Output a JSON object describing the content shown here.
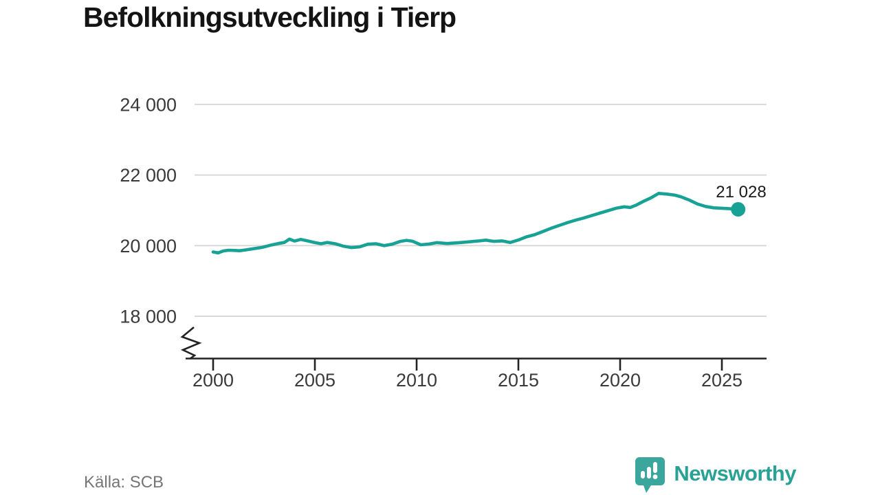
{
  "title": "Befolkningsutveckling i Tierp",
  "source": "Källa: SCB",
  "branding": {
    "name": "Newsworthy"
  },
  "colors": {
    "accent": "#18a295",
    "logo": "#3ba79c",
    "grid": "#d9d9d9",
    "axis": "#222222",
    "tick_text": "#3a3a3a",
    "label_text": "#1a1a1a",
    "muted_text": "#757575"
  },
  "chart_data": {
    "type": "line",
    "title": "Befolkningsutveckling i Tierp",
    "xlabel": "",
    "ylabel": "",
    "grid": "horizontal",
    "axis_break": true,
    "legend": "none",
    "source": "SCB",
    "x_ticks": [
      2000,
      2005,
      2010,
      2015,
      2020,
      2025
    ],
    "x_tick_labels": [
      "2000",
      "2005",
      "2010",
      "2015",
      "2020",
      "2025"
    ],
    "y_ticks": [
      18000,
      20000,
      22000,
      24000
    ],
    "y_tick_labels": [
      "18 000",
      "20 000",
      "22 000",
      "24 000"
    ],
    "xlim": [
      1998.6,
      2027.2
    ],
    "ylim": [
      16800,
      24800
    ],
    "end_label": "21 028",
    "end_value": 21028,
    "series": [
      {
        "name": "Befolkning i Tierp",
        "points": [
          [
            2000.0,
            19820
          ],
          [
            2000.25,
            19795
          ],
          [
            2000.5,
            19850
          ],
          [
            2000.75,
            19870
          ],
          [
            2001.0,
            19865
          ],
          [
            2001.3,
            19855
          ],
          [
            2001.6,
            19880
          ],
          [
            2002.0,
            19915
          ],
          [
            2002.4,
            19950
          ],
          [
            2002.8,
            20010
          ],
          [
            2003.2,
            20060
          ],
          [
            2003.5,
            20090
          ],
          [
            2003.75,
            20185
          ],
          [
            2004.0,
            20130
          ],
          [
            2004.3,
            20175
          ],
          [
            2004.6,
            20140
          ],
          [
            2005.0,
            20085
          ],
          [
            2005.3,
            20055
          ],
          [
            2005.6,
            20090
          ],
          [
            2006.0,
            20055
          ],
          [
            2006.4,
            19985
          ],
          [
            2006.8,
            19945
          ],
          [
            2007.2,
            19965
          ],
          [
            2007.6,
            20040
          ],
          [
            2008.0,
            20055
          ],
          [
            2008.4,
            20000
          ],
          [
            2008.8,
            20040
          ],
          [
            2009.2,
            20120
          ],
          [
            2009.5,
            20150
          ],
          [
            2009.8,
            20125
          ],
          [
            2010.2,
            20025
          ],
          [
            2010.6,
            20045
          ],
          [
            2011.0,
            20085
          ],
          [
            2011.5,
            20060
          ],
          [
            2012.0,
            20080
          ],
          [
            2012.5,
            20105
          ],
          [
            2013.0,
            20130
          ],
          [
            2013.4,
            20155
          ],
          [
            2013.8,
            20120
          ],
          [
            2014.2,
            20135
          ],
          [
            2014.6,
            20090
          ],
          [
            2015.0,
            20160
          ],
          [
            2015.4,
            20250
          ],
          [
            2015.8,
            20310
          ],
          [
            2016.2,
            20400
          ],
          [
            2016.6,
            20490
          ],
          [
            2017.0,
            20570
          ],
          [
            2017.4,
            20650
          ],
          [
            2017.8,
            20720
          ],
          [
            2018.2,
            20780
          ],
          [
            2018.6,
            20850
          ],
          [
            2019.0,
            20920
          ],
          [
            2019.4,
            20990
          ],
          [
            2019.8,
            21060
          ],
          [
            2020.2,
            21100
          ],
          [
            2020.5,
            21080
          ],
          [
            2020.8,
            21150
          ],
          [
            2021.2,
            21270
          ],
          [
            2021.5,
            21350
          ],
          [
            2021.9,
            21480
          ],
          [
            2022.3,
            21460
          ],
          [
            2022.7,
            21430
          ],
          [
            2023.0,
            21380
          ],
          [
            2023.4,
            21290
          ],
          [
            2023.8,
            21180
          ],
          [
            2024.2,
            21110
          ],
          [
            2024.6,
            21070
          ],
          [
            2025.0,
            21060
          ],
          [
            2025.4,
            21045
          ],
          [
            2025.8,
            21028
          ]
        ]
      }
    ]
  }
}
